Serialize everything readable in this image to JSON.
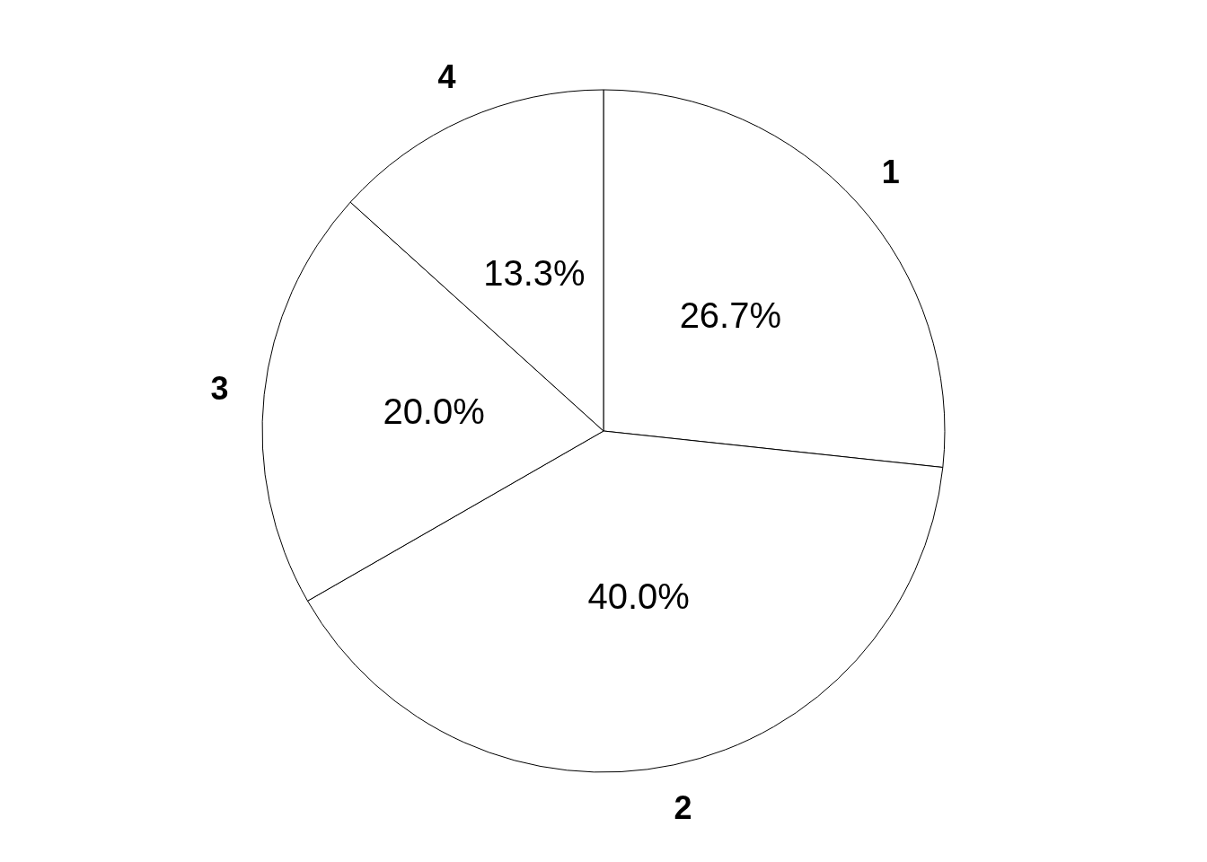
{
  "chart_data": {
    "type": "pie",
    "categories": [
      "1",
      "2",
      "3",
      "4"
    ],
    "values": [
      26.7,
      40.0,
      20.0,
      13.3
    ],
    "value_labels": [
      "26.7%",
      "40.0%",
      "20.0%",
      "13.3%"
    ],
    "colors": [
      "#ffffff",
      "#ffffff",
      "#ffffff",
      "#ffffff"
    ]
  }
}
